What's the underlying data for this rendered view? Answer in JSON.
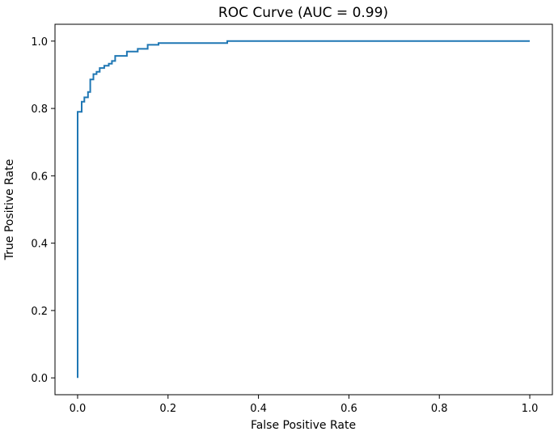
{
  "chart_data": {
    "type": "line",
    "title": "ROC Curve (AUC = 0.99)",
    "xlabel": "False Positive Rate",
    "ylabel": "True Positive Rate",
    "xlim": [
      -0.05,
      1.05
    ],
    "ylim": [
      -0.05,
      1.05
    ],
    "xticks": [
      "0.0",
      "0.2",
      "0.4",
      "0.6",
      "0.8",
      "1.0"
    ],
    "yticks": [
      "0.0",
      "0.2",
      "0.4",
      "0.6",
      "0.8",
      "1.0"
    ],
    "grid": false,
    "line_color": "#1f77b4",
    "series": [
      {
        "x": [
          0,
          0,
          0.009,
          0.009,
          0.015,
          0.015,
          0.023,
          0.023,
          0.028,
          0.028,
          0.035,
          0.035,
          0.042,
          0.042,
          0.049,
          0.049,
          0.059,
          0.059,
          0.069,
          0.069,
          0.076,
          0.076,
          0.083,
          0.083,
          0.109,
          0.109,
          0.133,
          0.133,
          0.155,
          0.155,
          0.179,
          0.179,
          0.331,
          0.331,
          1.0
        ],
        "y": [
          0,
          0.79,
          0.79,
          0.82,
          0.82,
          0.833,
          0.833,
          0.849,
          0.849,
          0.886,
          0.886,
          0.902,
          0.902,
          0.909,
          0.909,
          0.92,
          0.92,
          0.927,
          0.927,
          0.933,
          0.933,
          0.941,
          0.941,
          0.956,
          0.956,
          0.969,
          0.969,
          0.977,
          0.977,
          0.989,
          0.989,
          0.994,
          0.994,
          1.0,
          1.0
        ]
      }
    ]
  }
}
